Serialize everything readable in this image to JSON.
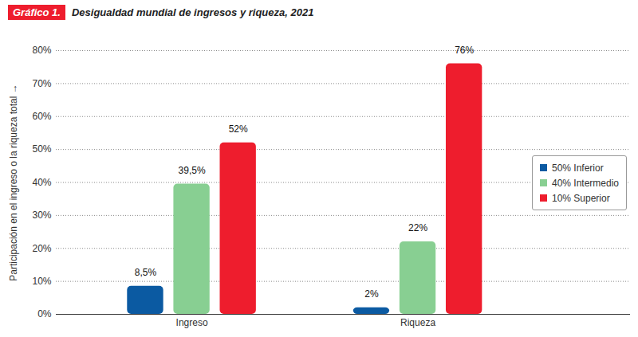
{
  "chart_data": {
    "type": "bar",
    "figure_number": "Gráfico 1.",
    "title": "Desigualdad mundial de ingresos y riqueza, 2021",
    "y_label": "Participación en el ingreso o la riqueza total",
    "categories": [
      "Ingreso",
      "Riqueza"
    ],
    "series": [
      {
        "name": "50% Inferior",
        "color": "#0b5aa2",
        "values": [
          8.5,
          2
        ],
        "value_labels": [
          "8,5%",
          "2%"
        ]
      },
      {
        "name": "40% Intermedio",
        "color": "#88cf92",
        "values": [
          39.5,
          22
        ],
        "value_labels": [
          "39,5%",
          "22%"
        ]
      },
      {
        "name": "10% Superior",
        "color": "#ee1d2d",
        "values": [
          52,
          76
        ],
        "value_labels": [
          "52%",
          "76%"
        ]
      }
    ],
    "ylim": [
      0,
      80
    ],
    "yticks": [
      {
        "value": 0,
        "label": "0%"
      },
      {
        "value": 10,
        "label": "10%"
      },
      {
        "value": 20,
        "label": "20%"
      },
      {
        "value": 30,
        "label": "30%"
      },
      {
        "value": 40,
        "label": "40%"
      },
      {
        "value": 50,
        "label": "50%"
      },
      {
        "value": 60,
        "label": "60%"
      },
      {
        "value": 70,
        "label": "70%"
      },
      {
        "value": 80,
        "label": "80%"
      }
    ],
    "grid": true,
    "legend": "right",
    "data_labels": true
  }
}
